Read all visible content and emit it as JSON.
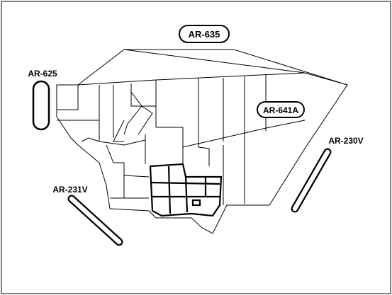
{
  "map": {
    "routes": [
      {
        "id": "ar-635",
        "label": "AR-635",
        "boxed": true
      },
      {
        "id": "ar-625",
        "label": "AR-625",
        "boxed": false
      },
      {
        "id": "ar-641a",
        "label": "AR-641A",
        "boxed": true
      },
      {
        "id": "ar-230v",
        "label": "AR-230V",
        "boxed": false
      },
      {
        "id": "ar-231v",
        "label": "AR-231V",
        "boxed": false
      }
    ],
    "colors": {
      "stroke": "#000000",
      "background": "#ffffff",
      "frame": "#555555"
    }
  }
}
